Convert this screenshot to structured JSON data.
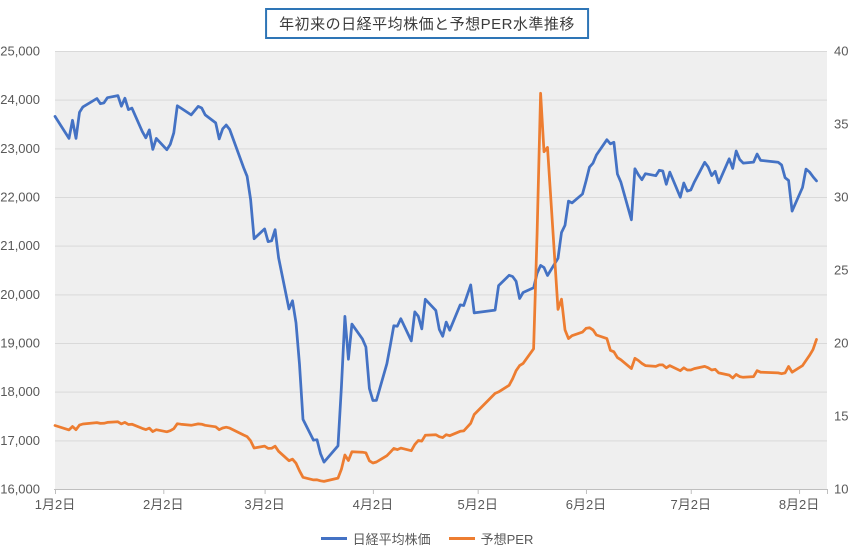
{
  "title": "年初来の日経平均株価と予想PER水準推移",
  "legend": {
    "items": [
      {
        "label": "日経平均株価",
        "color": "#4472C4"
      },
      {
        "label": "予想PER",
        "color": "#ED7D31"
      }
    ]
  },
  "colors": {
    "nikkei_line": "#4472C4",
    "per_line": "#ED7D31",
    "plot_background": "#EFEFEF",
    "gridline": "#D9D9D9",
    "axis_line": "#BFBFBF",
    "tick_label": "#595959",
    "title_border": "#2E75B6",
    "title_text": "#3B3B3B"
  },
  "chart_data": {
    "type": "line",
    "title": "年初来の日経平均株価と予想PER水準推移",
    "x_axis": {
      "unit": "days_since_jan2",
      "domain": [
        0,
        221
      ],
      "tick_days": [
        0,
        31,
        60,
        91,
        121,
        152,
        182,
        213
      ],
      "tick_labels": [
        "1月2日",
        "2月2日",
        "3月2日",
        "4月2日",
        "5月2日",
        "6月2日",
        "7月2日",
        "8月2日"
      ]
    },
    "left_axis": {
      "min": 16000,
      "max": 25000,
      "step": 1000,
      "tick_labels": [
        "25,000",
        "24,000",
        "23,000",
        "22,000",
        "21,000",
        "20,000",
        "19,000",
        "18,000",
        "17,000",
        "16,000"
      ],
      "tick_values": [
        25000,
        24000,
        23000,
        22000,
        21000,
        20000,
        19000,
        18000,
        17000,
        16000
      ]
    },
    "right_axis": {
      "min": 10,
      "max": 40,
      "step": 5,
      "tick_labels": [
        "40",
        "35",
        "30",
        "25",
        "20",
        "15",
        "10"
      ],
      "tick_values": [
        40,
        35,
        30,
        25,
        20,
        15,
        10
      ]
    },
    "grid": "horizontal",
    "legend_position": "bottom",
    "series": [
      {
        "name": "日経平均株価",
        "axis": "left",
        "color": "#4472C4",
        "points": [
          [
            0,
            23657
          ],
          [
            4,
            23205
          ],
          [
            5,
            23576
          ],
          [
            6,
            23205
          ],
          [
            7,
            23740
          ],
          [
            8,
            23851
          ],
          [
            12,
            24025
          ],
          [
            13,
            23917
          ],
          [
            14,
            23933
          ],
          [
            15,
            24041
          ],
          [
            18,
            24084
          ],
          [
            19,
            23865
          ],
          [
            20,
            24031
          ],
          [
            21,
            23795
          ],
          [
            22,
            23827
          ],
          [
            25,
            23344
          ],
          [
            26,
            23216
          ],
          [
            27,
            23379
          ],
          [
            28,
            22978
          ],
          [
            29,
            23205
          ],
          [
            32,
            22972
          ],
          [
            33,
            23085
          ],
          [
            34,
            23320
          ],
          [
            35,
            23874
          ],
          [
            36,
            23828
          ],
          [
            39,
            23686
          ],
          [
            41,
            23861
          ],
          [
            42,
            23828
          ],
          [
            43,
            23687
          ],
          [
            46,
            23523
          ],
          [
            47,
            23193
          ],
          [
            48,
            23401
          ],
          [
            49,
            23479
          ],
          [
            50,
            23387
          ],
          [
            54,
            22605
          ],
          [
            55,
            22426
          ],
          [
            56,
            21948
          ],
          [
            57,
            21143
          ],
          [
            60,
            21344
          ],
          [
            61,
            21083
          ],
          [
            62,
            21100
          ],
          [
            63,
            21329
          ],
          [
            64,
            20750
          ],
          [
            67,
            19699
          ],
          [
            68,
            19867
          ],
          [
            69,
            19416
          ],
          [
            70,
            18560
          ],
          [
            71,
            17431
          ],
          [
            74,
            17002
          ],
          [
            75,
            17012
          ],
          [
            76,
            16727
          ],
          [
            77,
            16553
          ],
          [
            81,
            16888
          ],
          [
            82,
            18092
          ],
          [
            83,
            19547
          ],
          [
            84,
            18665
          ],
          [
            85,
            19389
          ],
          [
            88,
            19085
          ],
          [
            89,
            18917
          ],
          [
            90,
            18065
          ],
          [
            91,
            17819
          ],
          [
            92,
            17820
          ],
          [
            95,
            18576
          ],
          [
            96,
            18950
          ],
          [
            97,
            19353
          ],
          [
            98,
            19346
          ],
          [
            99,
            19499
          ],
          [
            102,
            19043
          ],
          [
            103,
            19639
          ],
          [
            104,
            19550
          ],
          [
            105,
            19290
          ],
          [
            106,
            19897
          ],
          [
            109,
            19669
          ],
          [
            110,
            19280
          ],
          [
            111,
            19138
          ],
          [
            112,
            19429
          ],
          [
            113,
            19262
          ],
          [
            116,
            19783
          ],
          [
            117,
            19771
          ],
          [
            119,
            20194
          ],
          [
            120,
            19619
          ],
          [
            126,
            19675
          ],
          [
            127,
            20179
          ],
          [
            130,
            20391
          ],
          [
            131,
            20366
          ],
          [
            132,
            20267
          ],
          [
            133,
            19914
          ],
          [
            134,
            20037
          ],
          [
            137,
            20134
          ],
          [
            138,
            20433
          ],
          [
            139,
            20595
          ],
          [
            140,
            20552
          ],
          [
            141,
            20388
          ],
          [
            144,
            20741
          ],
          [
            145,
            21271
          ],
          [
            146,
            21419
          ],
          [
            147,
            21916
          ],
          [
            148,
            21878
          ],
          [
            151,
            22062
          ],
          [
            152,
            22326
          ],
          [
            153,
            22614
          ],
          [
            154,
            22696
          ],
          [
            155,
            22864
          ],
          [
            158,
            23178
          ],
          [
            159,
            23091
          ],
          [
            160,
            23125
          ],
          [
            161,
            22473
          ],
          [
            162,
            22305
          ],
          [
            165,
            21531
          ],
          [
            166,
            22582
          ],
          [
            167,
            22456
          ],
          [
            168,
            22355
          ],
          [
            169,
            22479
          ],
          [
            172,
            22437
          ],
          [
            173,
            22549
          ],
          [
            174,
            22534
          ],
          [
            175,
            22260
          ],
          [
            176,
            22512
          ],
          [
            179,
            21995
          ],
          [
            180,
            22288
          ],
          [
            181,
            22122
          ],
          [
            182,
            22146
          ],
          [
            183,
            22306
          ],
          [
            186,
            22714
          ],
          [
            187,
            22615
          ],
          [
            188,
            22439
          ],
          [
            189,
            22529
          ],
          [
            190,
            22291
          ],
          [
            193,
            22785
          ],
          [
            194,
            22587
          ],
          [
            195,
            22946
          ],
          [
            196,
            22770
          ],
          [
            197,
            22696
          ],
          [
            200,
            22717
          ],
          [
            201,
            22884
          ],
          [
            202,
            22752
          ],
          [
            207,
            22715
          ],
          [
            208,
            22657
          ],
          [
            209,
            22397
          ],
          [
            210,
            22340
          ],
          [
            211,
            21710
          ],
          [
            214,
            22195
          ],
          [
            215,
            22573
          ],
          [
            216,
            22514
          ],
          [
            217,
            22418
          ],
          [
            218,
            22330
          ]
        ]
      },
      {
        "name": "予想PER",
        "axis": "right",
        "color": "#ED7D31",
        "points": [
          [
            0,
            14.35
          ],
          [
            4,
            14.05
          ],
          [
            5,
            14.28
          ],
          [
            6,
            14.06
          ],
          [
            7,
            14.38
          ],
          [
            8,
            14.45
          ],
          [
            12,
            14.55
          ],
          [
            13,
            14.49
          ],
          [
            14,
            14.5
          ],
          [
            15,
            14.56
          ],
          [
            18,
            14.6
          ],
          [
            19,
            14.46
          ],
          [
            20,
            14.56
          ],
          [
            21,
            14.42
          ],
          [
            22,
            14.44
          ],
          [
            25,
            14.15
          ],
          [
            26,
            14.07
          ],
          [
            27,
            14.17
          ],
          [
            28,
            13.93
          ],
          [
            29,
            14.06
          ],
          [
            32,
            13.92
          ],
          [
            33,
            13.99
          ],
          [
            34,
            14.13
          ],
          [
            35,
            14.47
          ],
          [
            36,
            14.44
          ],
          [
            39,
            14.36
          ],
          [
            41,
            14.46
          ],
          [
            42,
            14.44
          ],
          [
            43,
            14.36
          ],
          [
            46,
            14.26
          ],
          [
            47,
            14.06
          ],
          [
            48,
            14.18
          ],
          [
            49,
            14.23
          ],
          [
            50,
            14.17
          ],
          [
            54,
            13.7
          ],
          [
            55,
            13.59
          ],
          [
            56,
            13.3
          ],
          [
            57,
            12.81
          ],
          [
            60,
            12.94
          ],
          [
            61,
            12.78
          ],
          [
            62,
            12.79
          ],
          [
            63,
            12.93
          ],
          [
            64,
            12.58
          ],
          [
            67,
            11.94
          ],
          [
            68,
            12.04
          ],
          [
            69,
            11.77
          ],
          [
            70,
            11.25
          ],
          [
            71,
            10.8
          ],
          [
            74,
            10.62
          ],
          [
            75,
            10.63
          ],
          [
            76,
            10.56
          ],
          [
            77,
            10.52
          ],
          [
            81,
            10.75
          ],
          [
            82,
            11.35
          ],
          [
            83,
            12.33
          ],
          [
            84,
            11.95
          ],
          [
            85,
            12.55
          ],
          [
            88,
            12.52
          ],
          [
            89,
            12.48
          ],
          [
            90,
            11.93
          ],
          [
            91,
            11.78
          ],
          [
            92,
            11.85
          ],
          [
            95,
            12.28
          ],
          [
            96,
            12.52
          ],
          [
            97,
            12.78
          ],
          [
            98,
            12.7
          ],
          [
            99,
            12.8
          ],
          [
            102,
            12.62
          ],
          [
            103,
            13.05
          ],
          [
            104,
            13.32
          ],
          [
            105,
            13.28
          ],
          [
            106,
            13.68
          ],
          [
            109,
            13.72
          ],
          [
            110,
            13.58
          ],
          [
            111,
            13.52
          ],
          [
            112,
            13.72
          ],
          [
            113,
            13.65
          ],
          [
            116,
            13.95
          ],
          [
            117,
            13.98
          ],
          [
            119,
            14.5
          ],
          [
            120,
            15.1
          ],
          [
            126,
            16.55
          ],
          [
            127,
            16.65
          ],
          [
            130,
            17.1
          ],
          [
            131,
            17.55
          ],
          [
            132,
            18.1
          ],
          [
            133,
            18.45
          ],
          [
            134,
            18.6
          ],
          [
            137,
            19.6
          ],
          [
            138,
            27.5
          ],
          [
            139,
            37.1
          ],
          [
            140,
            33.1
          ],
          [
            141,
            33.4
          ],
          [
            144,
            22.3
          ],
          [
            145,
            23.0
          ],
          [
            146,
            20.9
          ],
          [
            147,
            20.3
          ],
          [
            148,
            20.5
          ],
          [
            151,
            20.75
          ],
          [
            152,
            21.0
          ],
          [
            153,
            21.05
          ],
          [
            154,
            20.9
          ],
          [
            155,
            20.55
          ],
          [
            158,
            20.3
          ],
          [
            159,
            19.5
          ],
          [
            160,
            19.4
          ],
          [
            161,
            19.0
          ],
          [
            162,
            18.85
          ],
          [
            165,
            18.25
          ],
          [
            166,
            18.95
          ],
          [
            167,
            18.8
          ],
          [
            168,
            18.6
          ],
          [
            169,
            18.45
          ],
          [
            172,
            18.4
          ],
          [
            173,
            18.5
          ],
          [
            174,
            18.5
          ],
          [
            175,
            18.3
          ],
          [
            176,
            18.45
          ],
          [
            179,
            18.1
          ],
          [
            180,
            18.3
          ],
          [
            181,
            18.15
          ],
          [
            182,
            18.15
          ],
          [
            183,
            18.25
          ],
          [
            186,
            18.4
          ],
          [
            187,
            18.3
          ],
          [
            188,
            18.15
          ],
          [
            189,
            18.2
          ],
          [
            190,
            17.95
          ],
          [
            193,
            17.8
          ],
          [
            194,
            17.6
          ],
          [
            195,
            17.85
          ],
          [
            196,
            17.7
          ],
          [
            197,
            17.65
          ],
          [
            200,
            17.7
          ],
          [
            201,
            18.1
          ],
          [
            202,
            18.0
          ],
          [
            207,
            17.95
          ],
          [
            208,
            17.9
          ],
          [
            209,
            17.95
          ],
          [
            210,
            18.4
          ],
          [
            211,
            18.0
          ],
          [
            214,
            18.45
          ],
          [
            215,
            18.8
          ],
          [
            216,
            19.15
          ],
          [
            217,
            19.55
          ],
          [
            218,
            20.25
          ]
        ]
      }
    ]
  }
}
